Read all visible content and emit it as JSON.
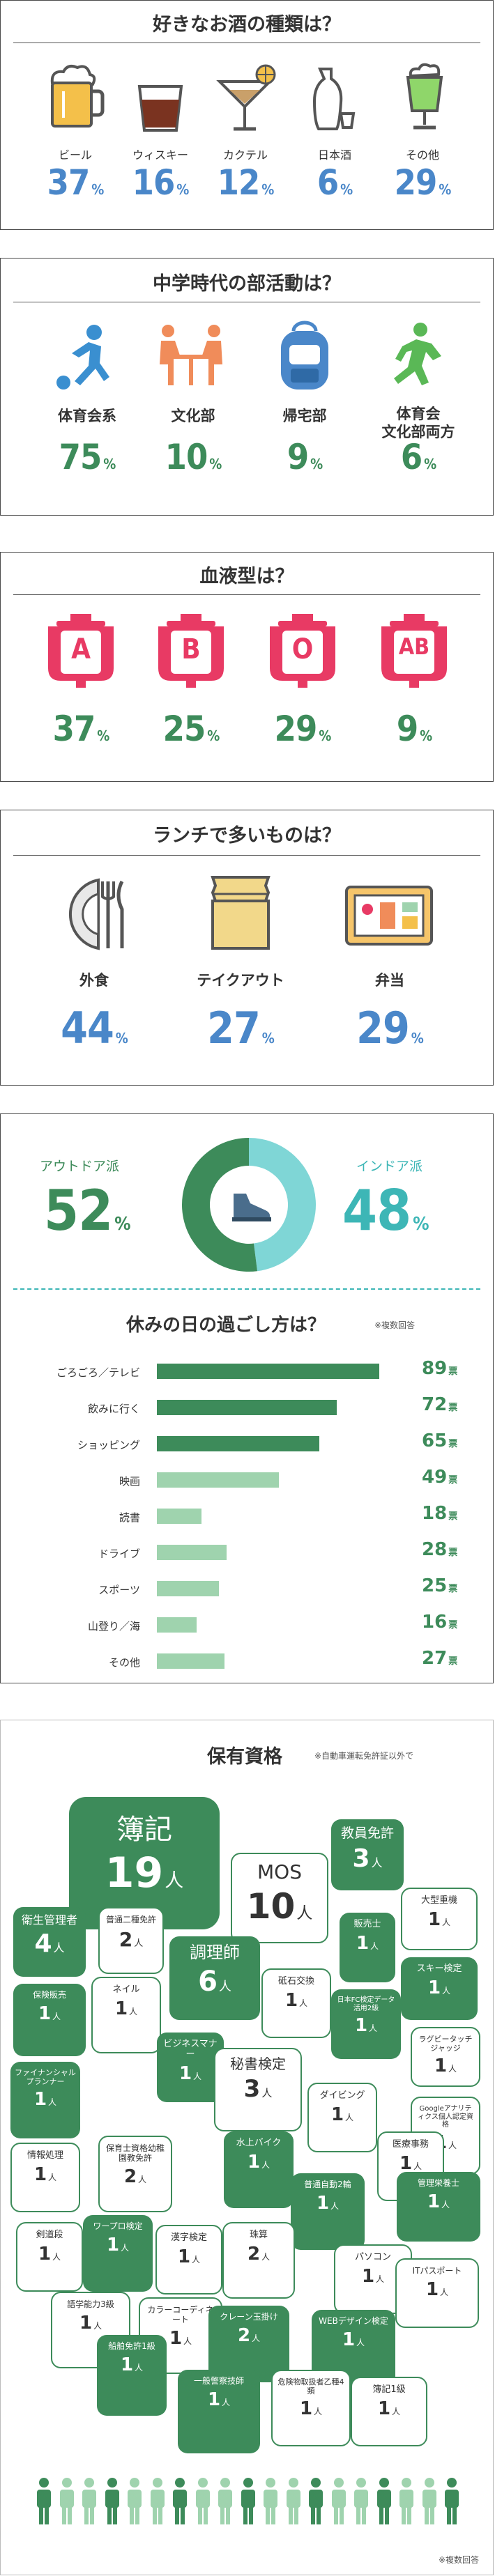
{
  "colors": {
    "blue": "#4a87c9",
    "green": "#3d8b5a",
    "light_green": "#9fd3ae",
    "teal": "#3db6b6",
    "red": "#e83a64",
    "orange": "#f08c5a"
  },
  "drinks": {
    "title": "好きなお酒の種類は？",
    "items": [
      {
        "label": "ビール",
        "value": "37",
        "unit": "%",
        "icon": "beer-mug-icon"
      },
      {
        "label": "ウィスキー",
        "value": "16",
        "unit": "%",
        "icon": "whisky-glass-icon"
      },
      {
        "label": "カクテル",
        "value": "12",
        "unit": "%",
        "icon": "cocktail-glass-icon"
      },
      {
        "label": "日本酒",
        "value": "6",
        "unit": "%",
        "icon": "sake-bottle-icon"
      },
      {
        "label": "その他",
        "value": "29",
        "unit": "%",
        "icon": "tall-glass-icon"
      }
    ]
  },
  "clubs": {
    "title": "中学時代の部活動は？",
    "items": [
      {
        "label": "体育会系",
        "label2": "",
        "value": "75",
        "unit": "%",
        "icon": "soccer-player-icon"
      },
      {
        "label": "文化部",
        "label2": "",
        "value": "10",
        "unit": "%",
        "icon": "table-game-icon"
      },
      {
        "label": "帰宅部",
        "label2": "",
        "value": "9",
        "unit": "%",
        "icon": "backpack-icon"
      },
      {
        "label": "体育会",
        "label2": "文化部両方",
        "value": "6",
        "unit": "%",
        "icon": "runner-icon"
      }
    ]
  },
  "blood": {
    "title": "血液型は？",
    "items": [
      {
        "type": "A",
        "value": "37",
        "unit": "%"
      },
      {
        "type": "B",
        "value": "25",
        "unit": "%"
      },
      {
        "type": "O",
        "value": "29",
        "unit": "%"
      },
      {
        "type": "AB",
        "value": "9",
        "unit": "%"
      }
    ]
  },
  "lunch": {
    "title": "ランチで多いものは？",
    "items": [
      {
        "label": "外食",
        "value": "44",
        "unit": "%",
        "icon": "plate-cutlery-icon"
      },
      {
        "label": "テイクアウト",
        "value": "27",
        "unit": "%",
        "icon": "paper-bag-icon"
      },
      {
        "label": "弁当",
        "value": "29",
        "unit": "%",
        "icon": "bento-box-icon"
      }
    ]
  },
  "holiday": {
    "outdoor": {
      "label": "アウトドア派",
      "value": "52",
      "unit": "%"
    },
    "indoor": {
      "label": "インドア派",
      "value": "48",
      "unit": "%"
    },
    "title": "休みの日の過ごし方は？",
    "note": "※複数回答",
    "unit": "票"
  },
  "licenses": {
    "title": "保有資格",
    "note": "※自動車運転免許証以外で",
    "footnote": "※複数回答",
    "unit": "人",
    "items": [
      {
        "name": "簿記",
        "value": "19"
      },
      {
        "name": "MOS",
        "value": "10"
      },
      {
        "name": "教員免許",
        "value": "3"
      },
      {
        "name": "衛生管理者",
        "value": "4"
      },
      {
        "name": "普通二種免許",
        "value": "2"
      },
      {
        "name": "調理師",
        "value": "6"
      },
      {
        "name": "大型重機",
        "value": "1"
      },
      {
        "name": "販売士",
        "value": "1"
      },
      {
        "name": "スキー検定",
        "value": "1"
      },
      {
        "name": "保険販売",
        "value": "1"
      },
      {
        "name": "ネイル",
        "value": "1"
      },
      {
        "name": "ビジネスマナー",
        "value": "1"
      },
      {
        "name": "砥石交換",
        "value": "1"
      },
      {
        "name": "日本FC検定データ活用2級",
        "value": "1"
      },
      {
        "name": "ラグビータッチジャッジ",
        "value": "1"
      },
      {
        "name": "ファイナンシャルプランナー",
        "value": "1"
      },
      {
        "name": "秘書検定",
        "value": "3"
      },
      {
        "name": "Googleアナリティクス個人認定資格",
        "value": "1"
      },
      {
        "name": "情報処理",
        "value": "1"
      },
      {
        "name": "保育士資格幼稚園教免許",
        "value": "2"
      },
      {
        "name": "ダイビング",
        "value": "1"
      },
      {
        "name": "医療事務",
        "value": "1"
      },
      {
        "name": "水上バイク",
        "value": "1"
      },
      {
        "name": "剣道段",
        "value": "1"
      },
      {
        "name": "ワープロ検定",
        "value": "1"
      },
      {
        "name": "漢字検定",
        "value": "1"
      },
      {
        "name": "普通自動2輪",
        "value": "1"
      },
      {
        "name": "管理栄養士",
        "value": "1"
      },
      {
        "name": "珠算",
        "value": "2"
      },
      {
        "name": "パソコン",
        "value": "1"
      },
      {
        "name": "語学能力3級",
        "value": "1"
      },
      {
        "name": "カラーコーディネート",
        "value": "1"
      },
      {
        "name": "クレーン玉掛け",
        "value": "2"
      },
      {
        "name": "WEBデザイン検定",
        "value": "1"
      },
      {
        "name": "ITパスポート",
        "value": "1"
      },
      {
        "name": "船舶免許1級",
        "value": "1"
      },
      {
        "name": "危険物取扱者乙種4類",
        "value": "1"
      },
      {
        "name": "簿記1級",
        "value": "1"
      },
      {
        "name": "一般警察技師",
        "value": "1"
      }
    ]
  },
  "chart_data": [
    {
      "type": "pie",
      "title": "休みの日の過ごし方",
      "categories": [
        "アウトドア派",
        "インドア派"
      ],
      "values": [
        52,
        48
      ],
      "unit": "%"
    },
    {
      "type": "bar",
      "title": "休みの日の過ごし方は？",
      "orientation": "horizontal",
      "categories": [
        "ごろごろ／テレビ",
        "飲みに行く",
        "ショッピング",
        "映画",
        "読書",
        "ドライブ",
        "スポーツ",
        "山登り／海",
        "その他"
      ],
      "values": [
        89,
        72,
        65,
        49,
        18,
        28,
        25,
        16,
        27
      ],
      "unit": "票",
      "xlim": [
        0,
        95
      ],
      "colors": [
        "#3d8b5a",
        "#3d8b5a",
        "#3d8b5a",
        "#9fd3ae",
        "#9fd3ae",
        "#9fd3ae",
        "#9fd3ae",
        "#9fd3ae",
        "#9fd3ae"
      ]
    }
  ]
}
